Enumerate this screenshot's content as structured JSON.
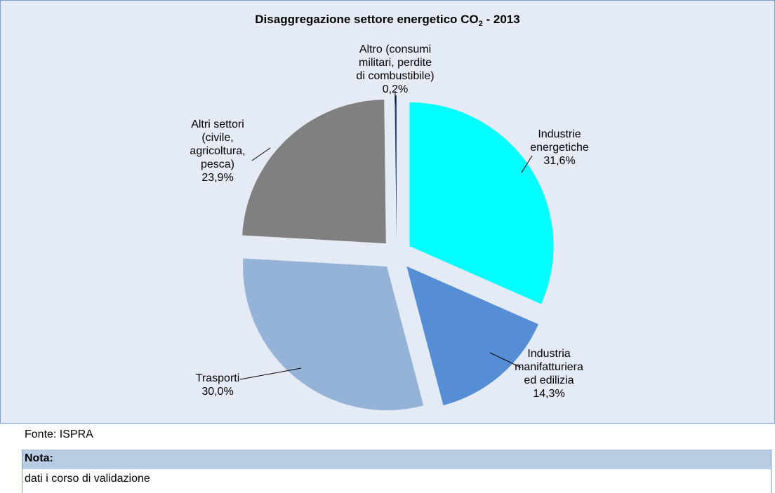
{
  "chart_data": {
    "type": "pie",
    "title_main": "Disaggregazione settore energetico CO",
    "title_sub": "2",
    "title_end": " - 2013",
    "slices": [
      {
        "label_lines": [
          "Industrie",
          "energetiche",
          "31,6%"
        ],
        "value": 31.6,
        "color": "#00ffff"
      },
      {
        "label_lines": [
          "Industria",
          "manifatturiera",
          "ed edilizia",
          "14,3%"
        ],
        "value": 14.3,
        "color": "#558ed5"
      },
      {
        "label_lines": [
          "Trasporti",
          "30,0%"
        ],
        "value": 30.0,
        "color": "#95b3d7"
      },
      {
        "label_lines": [
          "Altri settori",
          "(civile,",
          "agricoltura,",
          "pesca)",
          "23,9%"
        ],
        "value": 23.9,
        "color": "#808080"
      },
      {
        "label_lines": [
          "Altro (consumi",
          "militari, perdite",
          "di combustibile)",
          "0,2%"
        ],
        "value": 0.2,
        "color": "#1f3864"
      }
    ]
  },
  "footer": {
    "source": "Fonte: ISPRA",
    "nota_label": "Nota:",
    "nota_text": "dati i corso di validazione"
  }
}
